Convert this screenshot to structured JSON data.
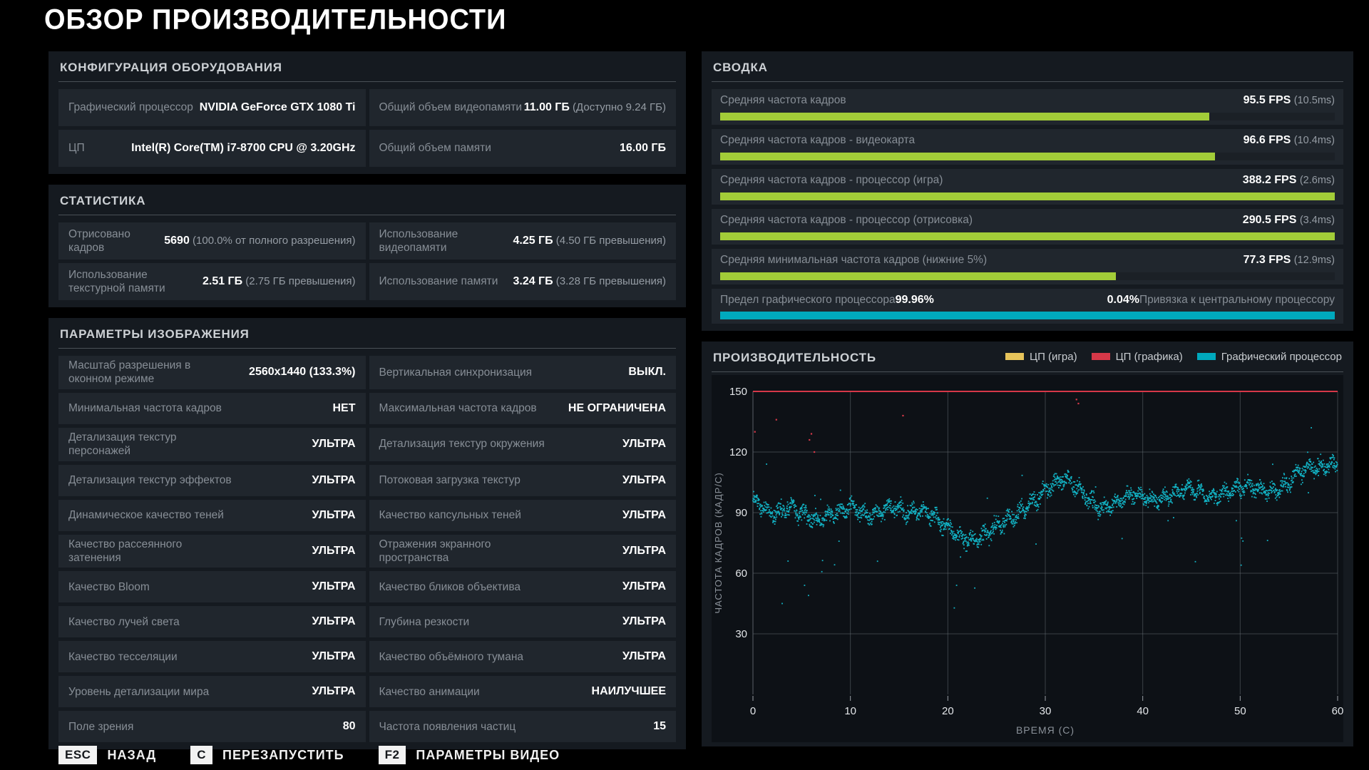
{
  "title": "ОБЗОР ПРОИЗВОДИТЕЛЬНОСТИ",
  "colors": {
    "green": "#a2cc38",
    "teal": "#00a9bd",
    "red": "#d63848",
    "yellow": "#e6c35a"
  },
  "hardware": {
    "header": "КОНФИГУРАЦИЯ ОБОРУДОВАНИЯ",
    "rows": [
      {
        "label": "Графический процессор",
        "value": "NVIDIA GeForce GTX 1080 Ti",
        "note": ""
      },
      {
        "label": "Общий объем видеопамяти",
        "value": "11.00 ГБ",
        "note": "(Доступно 9.24 ГБ)"
      },
      {
        "label": "ЦП",
        "value": "Intel(R) Core(TM) i7-8700 CPU @ 3.20GHz",
        "note": ""
      },
      {
        "label": "Общий объем памяти",
        "value": "16.00 ГБ",
        "note": ""
      }
    ]
  },
  "statistics": {
    "header": "СТАТИСТИКА",
    "rows": [
      {
        "label": "Отрисовано кадров",
        "value": "5690",
        "note": "(100.0% от полного разрешения)"
      },
      {
        "label": "Использование видеопамяти",
        "value": "4.25 ГБ",
        "note": "(4.50 ГБ превышения)"
      },
      {
        "label": "Использование текстурной памяти",
        "value": "2.51 ГБ",
        "note": "(2.75 ГБ превышения)"
      },
      {
        "label": "Использование памяти",
        "value": "3.24 ГБ",
        "note": "(3.28 ГБ превышения)"
      }
    ]
  },
  "image_settings": {
    "header": "ПАРАМЕТРЫ ИЗОБРАЖЕНИЯ",
    "rows": [
      {
        "label": "Масштаб разрешения в оконном режиме",
        "value": "2560x1440 (133.3%)"
      },
      {
        "label": "Вертикальная синхронизация",
        "value": "ВЫКЛ."
      },
      {
        "label": "Минимальная частота кадров",
        "value": "НЕТ"
      },
      {
        "label": "Максимальная частота кадров",
        "value": "НЕ ОГРАНИЧЕНА"
      },
      {
        "label": "Детализация текстур персонажей",
        "value": "УЛЬТРА"
      },
      {
        "label": "Детализация текстур окружения",
        "value": "УЛЬТРА"
      },
      {
        "label": "Детализация текстур эффектов",
        "value": "УЛЬТРА"
      },
      {
        "label": "Потоковая загрузка текстур",
        "value": "УЛЬТРА"
      },
      {
        "label": "Динамическое качество теней",
        "value": "УЛЬТРА"
      },
      {
        "label": "Качество капсульных теней",
        "value": "УЛЬТРА"
      },
      {
        "label": "Качество рассеянного затенения",
        "value": "УЛЬТРА"
      },
      {
        "label": "Отражения экранного пространства",
        "value": "УЛЬТРА"
      },
      {
        "label": "Качество Bloom",
        "value": "УЛЬТРА"
      },
      {
        "label": "Качество бликов объектива",
        "value": "УЛЬТРА"
      },
      {
        "label": "Качество лучей света",
        "value": "УЛЬТРА"
      },
      {
        "label": "Глубина резкости",
        "value": "УЛЬТРА"
      },
      {
        "label": "Качество тесселяции",
        "value": "УЛЬТРА"
      },
      {
        "label": "Качество объёмного тумана",
        "value": "УЛЬТРА"
      },
      {
        "label": "Уровень детализации мира",
        "value": "УЛЬТРА"
      },
      {
        "label": "Качество анимации",
        "value": "НАИЛУЧШЕЕ"
      },
      {
        "label": "Поле зрения",
        "value": "80"
      },
      {
        "label": "Частота появления частиц",
        "value": "15"
      }
    ]
  },
  "summary": {
    "header": "СВОДКА",
    "bar_max_fps": 120,
    "rows": [
      {
        "label": "Средняя частота кадров",
        "fps": 95.5,
        "fps_text": "95.5 FPS",
        "ms_text": "(10.5ms)"
      },
      {
        "label": "Средняя частота кадров - видеокарта",
        "fps": 96.6,
        "fps_text": "96.6 FPS",
        "ms_text": "(10.4ms)"
      },
      {
        "label": "Средняя частота кадров - процессор (игра)",
        "fps": 388.2,
        "fps_text": "388.2 FPS",
        "ms_text": "(2.6ms)"
      },
      {
        "label": "Средняя частота кадров - процессор (отрисовка)",
        "fps": 290.5,
        "fps_text": "290.5 FPS",
        "ms_text": "(3.4ms)"
      },
      {
        "label": "Средняя минимальная частота кадров (нижние 5%)",
        "fps": 77.3,
        "fps_text": "77.3 FPS",
        "ms_text": "(12.9ms)"
      }
    ],
    "gpu_bound": {
      "label_left": "Предел графического процессора",
      "value_left": "99.96%",
      "value_right": "0.04%",
      "label_right": "Привязка к центральному процессору"
    }
  },
  "performance": {
    "header": "ПРОИЗВОДИТЕЛЬНОСТЬ",
    "legend": [
      {
        "label": "ЦП (игра)",
        "color_key": "yellow"
      },
      {
        "label": "ЦП (графика)",
        "color_key": "red"
      },
      {
        "label": "Графический процессор",
        "color_key": "teal"
      }
    ]
  },
  "chart_data": {
    "type": "scatter",
    "title": "ПРОИЗВОДИТЕЛЬНОСТЬ",
    "xlabel": "ВРЕМЯ (С)",
    "ylabel": "ЧАСТОТА КАДРОВ (КАДР/С)",
    "xlim": [
      0,
      60
    ],
    "ylim": [
      0,
      155
    ],
    "x_ticks": [
      0,
      10,
      20,
      30,
      40,
      50,
      60
    ],
    "y_ticks": [
      30,
      60,
      90,
      120,
      150
    ],
    "grid": true,
    "legend_position": "top-right",
    "frame_cap_fps": 150,
    "series": [
      {
        "name": "ЦП (игра)",
        "color_key": "yellow",
        "render": "hline_capped",
        "value_fps": 150
      },
      {
        "name": "ЦП (графика)",
        "color_key": "red",
        "render": "hline_capped",
        "value_fps": 150,
        "stray_points": [
          [
            0.2,
            130
          ],
          [
            2.4,
            136
          ],
          [
            5.8,
            126
          ],
          [
            6.0,
            129
          ],
          [
            6.3,
            120
          ],
          [
            15.4,
            138
          ],
          [
            33.2,
            146
          ],
          [
            33.4,
            144
          ]
        ]
      },
      {
        "name": "Графический процессор",
        "color_key": "teal",
        "render": "scatter_band",
        "trend_fps_per_second": [
          97,
          93,
          89,
          91,
          93,
          90,
          87,
          87,
          89,
          91,
          93,
          91,
          89,
          90,
          93,
          92,
          90,
          91,
          90,
          87,
          83,
          79,
          76,
          77,
          80,
          83,
          86,
          89,
          93,
          97,
          101,
          105,
          107,
          104,
          99,
          94,
          92,
          94,
          97,
          99,
          98,
          96,
          97,
          99,
          101,
          102,
          100,
          97,
          99,
          101,
          102,
          103,
          102,
          101,
          102,
          104,
          110,
          113,
          112,
          113,
          114
        ],
        "band_halfwidth_fps": 5.5,
        "points_per_second": 42,
        "stray_points": [
          [
            1.4,
            114
          ],
          [
            3.0,
            45
          ],
          [
            3.6,
            66
          ],
          [
            5.3,
            54
          ],
          [
            5.7,
            49
          ],
          [
            20.9,
            54
          ],
          [
            21.3,
            68
          ],
          [
            33.8,
            100
          ],
          [
            42.6,
            86
          ],
          [
            49.6,
            86
          ],
          [
            50.1,
            64
          ],
          [
            57.3,
            132
          ]
        ]
      }
    ]
  },
  "footer": {
    "items": [
      {
        "key": "ESC",
        "label": "НАЗАД"
      },
      {
        "key": "C",
        "label": "ПЕРЕЗАПУСТИТЬ"
      },
      {
        "key": "F2",
        "label": "ПАРАМЕТРЫ ВИДЕО"
      }
    ]
  }
}
